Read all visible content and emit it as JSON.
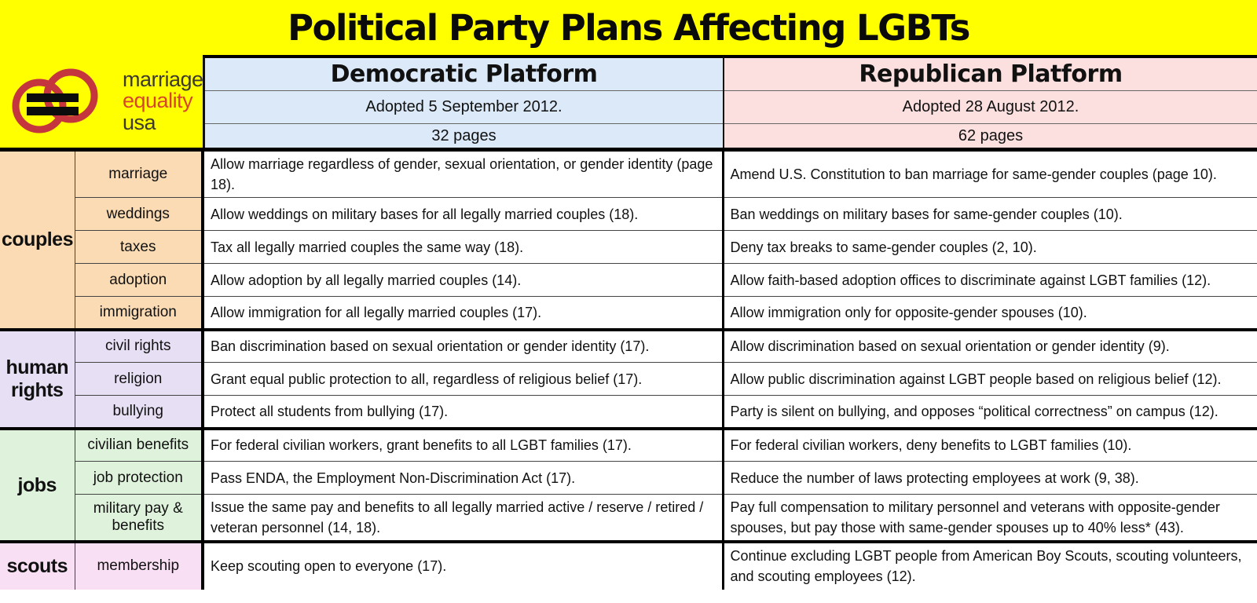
{
  "title": "Political Party Plans Affecting LGBTs",
  "logo": {
    "line1": "marriage",
    "line2": "equality",
    "line3": "usa"
  },
  "columns": {
    "democratic": {
      "name": "Democratic Platform",
      "adopted": "Adopted 5 September 2012.",
      "pages": "32 pages"
    },
    "republican": {
      "name": "Republican Platform",
      "adopted": "Adopted 28 August 2012.",
      "pages": "62 pages"
    }
  },
  "groups": [
    {
      "label": "couples",
      "color": "#FBDBB3",
      "rows": [
        {
          "topic": "marriage",
          "democratic": "Allow marriage regardless of gender, sexual orientation, or gender identity (page 18).",
          "republican": "Amend U.S. Constitution to ban marriage for same-gender couples (page 10)."
        },
        {
          "topic": "weddings",
          "democratic": "Allow weddings on military bases for all legally married couples (18).",
          "republican": "Ban weddings on military bases for same-gender couples (10)."
        },
        {
          "topic": "taxes",
          "democratic": "Tax all legally married couples the same way (18).",
          "republican": "Deny tax breaks to same-gender couples (2, 10)."
        },
        {
          "topic": "adoption",
          "democratic": "Allow adoption by all legally married couples (14).",
          "republican": "Allow faith-based adoption offices to discriminate against LGBT families (12)."
        },
        {
          "topic": "immigration",
          "democratic": "Allow immigration for all legally married couples (17).",
          "republican": "Allow immigration only for opposite-gender spouses (10)."
        }
      ]
    },
    {
      "label": "human rights",
      "color": "#E7DFF4",
      "rows": [
        {
          "topic": "civil rights",
          "democratic": "Ban discrimination based on sexual orientation or gender identity (17).",
          "republican": "Allow discrimination based on sexual orientation or gender identity (9)."
        },
        {
          "topic": "religion",
          "democratic": "Grant equal public protection to all, regardless of religious belief (17).",
          "republican": "Allow public discrimination against LGBT people based on religious belief (12)."
        },
        {
          "topic": "bullying",
          "democratic": "Protect all students from bullying (17).",
          "republican": "Party is silent on bullying, and opposes “political correctness” on campus (12)."
        }
      ]
    },
    {
      "label": "jobs",
      "color": "#DFF3DC",
      "rows": [
        {
          "topic": "civilian benefits",
          "democratic": "For federal civilian workers, grant benefits to all LGBT families (17).",
          "republican": "For federal civilian workers, deny benefits to LGBT families (10)."
        },
        {
          "topic": "job protection",
          "democratic": "Pass ENDA, the Employment Non-Discrimination Act (17).",
          "republican": "Reduce the number of laws protecting employees at work (9, 38)."
        },
        {
          "topic": "military pay & benefits",
          "democratic": "Issue the same pay and benefits to all legally married active / reserve / retired / veteran personnel (14, 18).",
          "republican": "Pay full compensation to military personnel and veterans with opposite-gender spouses, but pay those with same-gender spouses up to 40% less* (43)."
        }
      ]
    },
    {
      "label": "scouts",
      "color": "#F8DFF3",
      "rows": [
        {
          "topic": "membership",
          "democratic": "Keep scouting open to everyone (17).",
          "republican": "Continue excluding LGBT people from American Boy Scouts, scouting volunteers, and scouting employees (12)."
        }
      ]
    }
  ],
  "colors": {
    "yellow": "#FFFF00",
    "democratic_header_bg": "#DBE9F8",
    "republican_header_bg": "#FCDFDF",
    "ring_red": "#C5353E",
    "logo_text_dark": "#3E3A2D",
    "logo_text_red": "#D7462B",
    "border_black": "#000000"
  }
}
